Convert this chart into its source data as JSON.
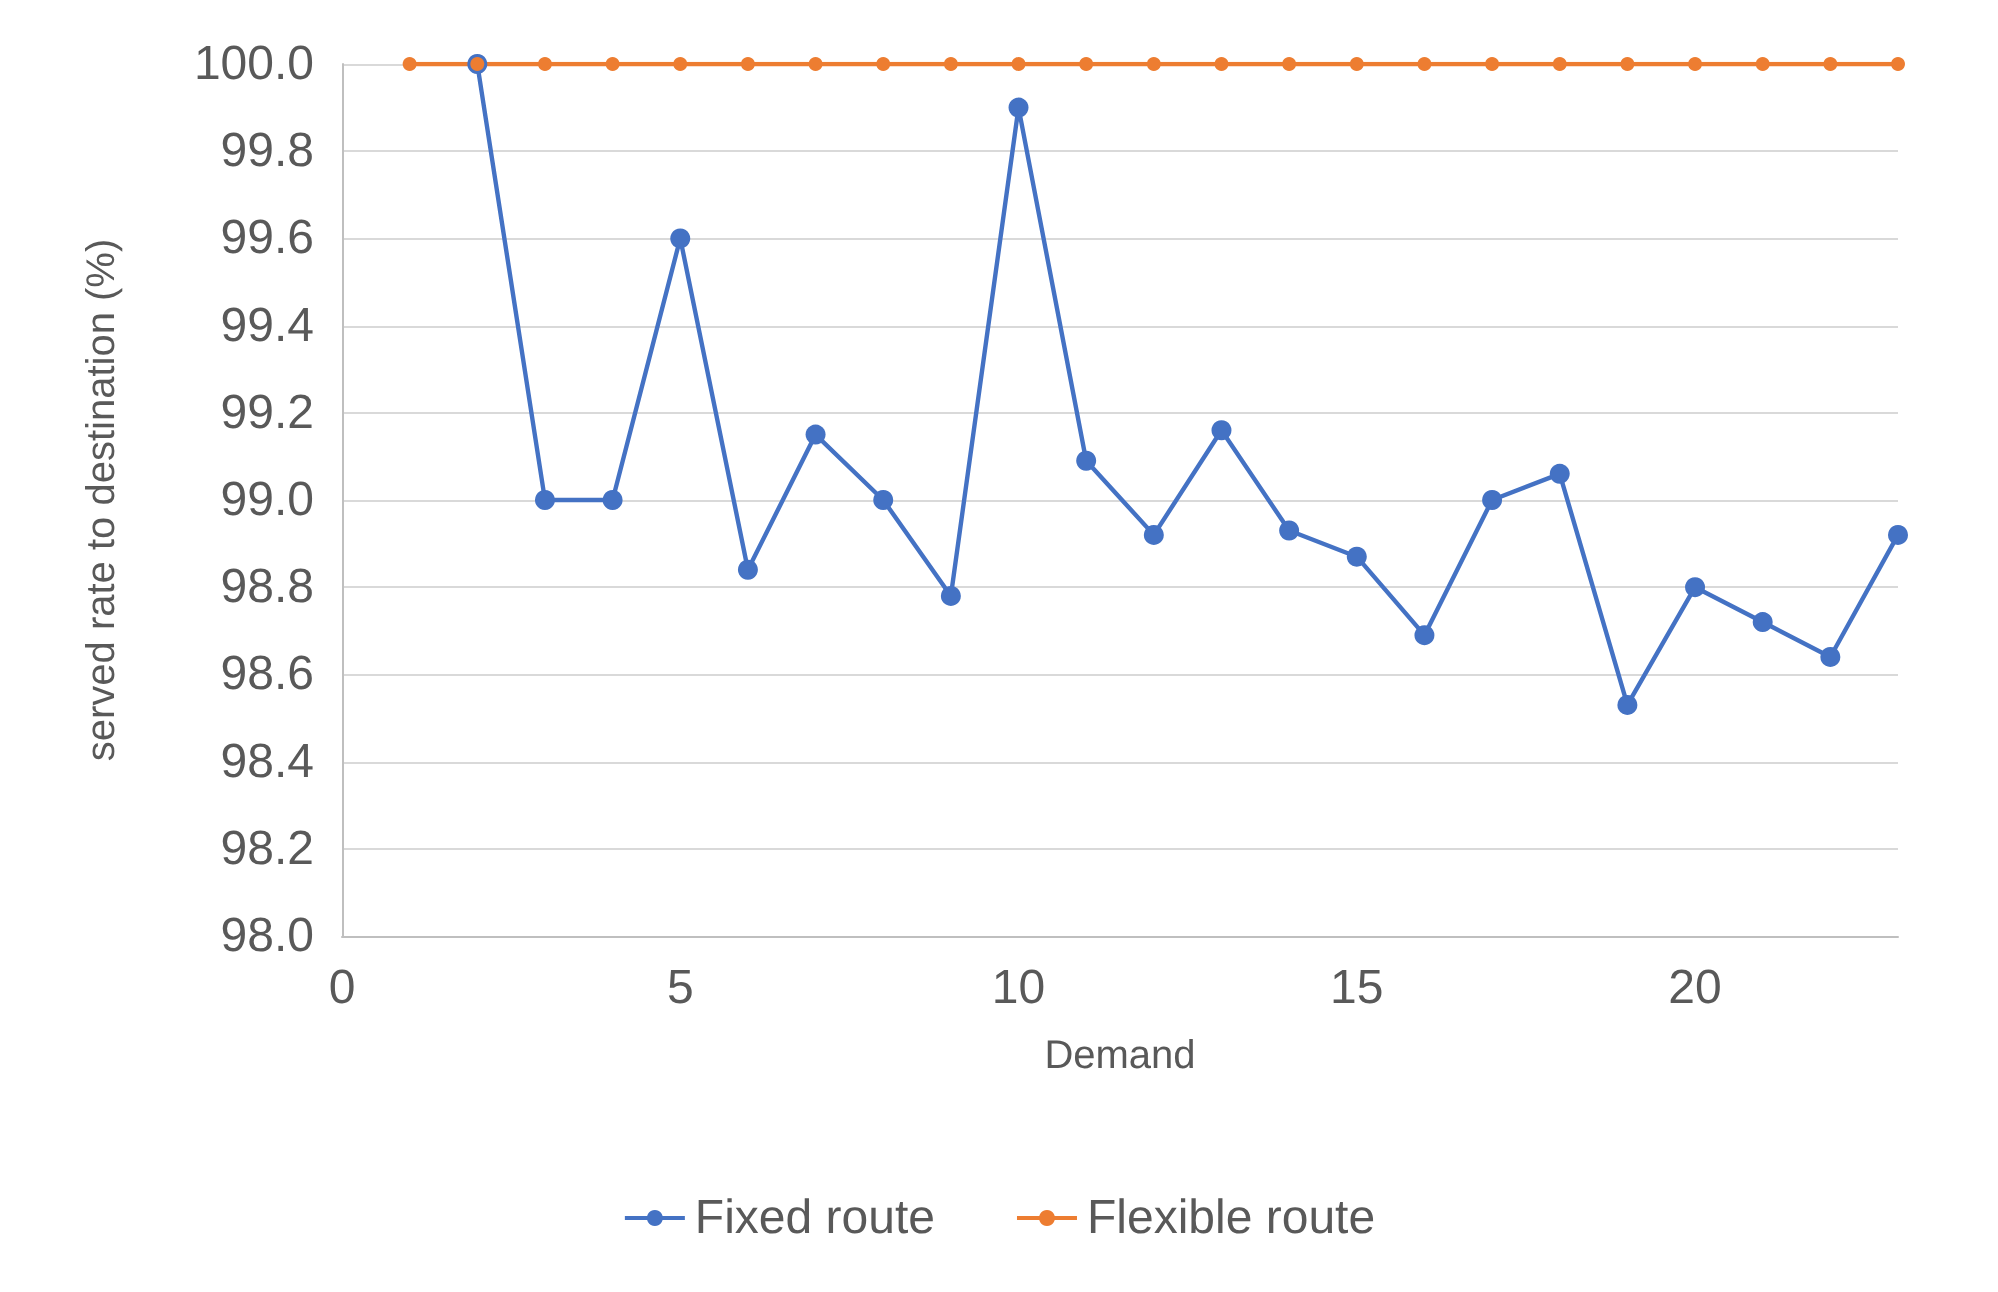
{
  "chart_data": {
    "type": "line",
    "xlabel": "Demand",
    "ylabel": "served rate to destination (%)",
    "x": [
      1,
      2,
      3,
      4,
      5,
      6,
      7,
      8,
      9,
      10,
      11,
      12,
      13,
      14,
      15,
      16,
      17,
      18,
      19,
      20,
      21,
      22,
      23
    ],
    "series": [
      {
        "name": "Fixed route",
        "color": "#4472c4",
        "values": [
          null,
          100.0,
          99.0,
          99.0,
          99.6,
          98.84,
          99.15,
          99.0,
          98.78,
          99.9,
          99.09,
          98.92,
          99.16,
          98.93,
          98.87,
          98.69,
          99.0,
          99.06,
          98.53,
          98.8,
          98.72,
          98.64,
          98.92
        ]
      },
      {
        "name": "Flexible route",
        "color": "#ed7d31",
        "values": [
          100,
          100,
          100,
          100,
          100,
          100,
          100,
          100,
          100,
          100,
          100,
          100,
          100,
          100,
          100,
          100,
          100,
          100,
          100,
          100,
          100,
          100,
          100
        ]
      }
    ],
    "xlim": [
      0,
      23
    ],
    "xticks": [
      0,
      5,
      10,
      15,
      20
    ],
    "ylim": [
      98.0,
      100.0
    ],
    "yticks": [
      {
        "value": 98,
        "label": "98.0"
      },
      98.2,
      98.4,
      98.6,
      98.8,
      {
        "value": 99,
        "label": "99.0"
      },
      99.2,
      99.4,
      99.6,
      99.8,
      {
        "value": 100,
        "label": "100.0"
      }
    ],
    "grid": "y",
    "legend": "bottom",
    "marker": "circle",
    "line_style": "solid"
  }
}
